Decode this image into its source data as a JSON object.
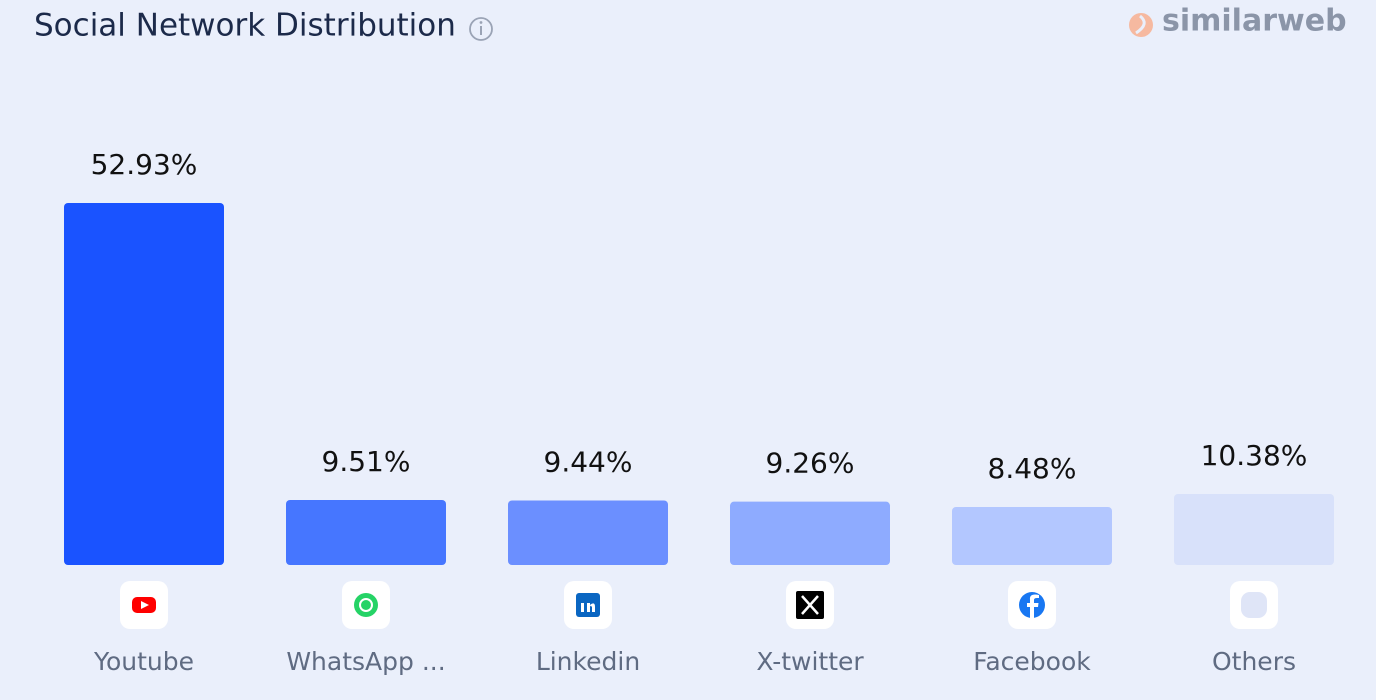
{
  "chart_data": {
    "type": "bar",
    "title": "Social Network Distribution",
    "brand": "similarweb",
    "categories": [
      "Youtube",
      "WhatsApp ...",
      "Linkedin",
      "X-twitter",
      "Facebook",
      "Others"
    ],
    "values": [
      52.93,
      9.51,
      9.44,
      9.26,
      8.48,
      10.38
    ],
    "value_labels": [
      "52.93%",
      "9.51%",
      "9.44%",
      "9.26%",
      "8.48%",
      "10.38%"
    ],
    "colors": [
      "#1a53ff",
      "#4676ff",
      "#6b8fff",
      "#8eabff",
      "#b3c7ff",
      "#d8e1fa"
    ]
  }
}
